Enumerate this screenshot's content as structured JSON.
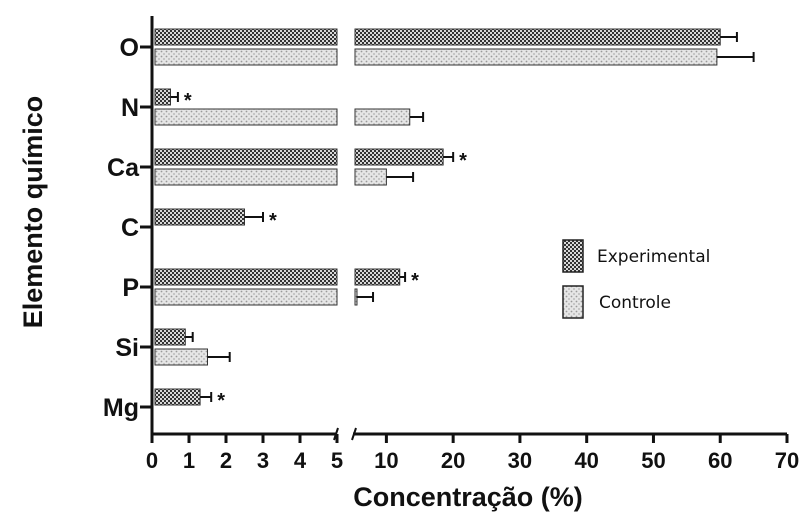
{
  "chart_data": {
    "type": "bar",
    "orientation": "horizontal",
    "xlabel": "Concentração (%)",
    "ylabel": "Elemento químico",
    "categories": [
      "O",
      "N",
      "Ca",
      "C",
      "P",
      "Si",
      "Mg"
    ],
    "x_axis": {
      "broken": true,
      "segments": [
        {
          "range": [
            0,
            5
          ],
          "ticks": [
            "0",
            "1",
            "2",
            "3",
            "4",
            "5"
          ]
        },
        {
          "range": [
            5,
            70
          ],
          "ticks": [
            "10",
            "20",
            "30",
            "40",
            "50",
            "60",
            "70"
          ]
        }
      ]
    },
    "series": [
      {
        "name": "Experimental",
        "pattern": "checkered-dark",
        "values": [
          60,
          0.5,
          18.5,
          2.5,
          12,
          0.9,
          1.3
        ],
        "errors": [
          2.5,
          0.2,
          1.5,
          0.5,
          0.8,
          0.2,
          0.3
        ],
        "significant": [
          false,
          true,
          true,
          true,
          true,
          false,
          true
        ]
      },
      {
        "name": "Controle",
        "pattern": "dotted-light",
        "values": [
          59.5,
          13.5,
          10,
          null,
          5.5,
          1.5,
          null
        ],
        "errors": [
          5.5,
          2,
          4,
          null,
          2.5,
          0.6,
          null
        ],
        "significant": [
          false,
          false,
          false,
          false,
          false,
          false,
          false
        ]
      }
    ],
    "significance_marker": "*",
    "legend": {
      "placement": "middle-right"
    },
    "grid": false
  }
}
